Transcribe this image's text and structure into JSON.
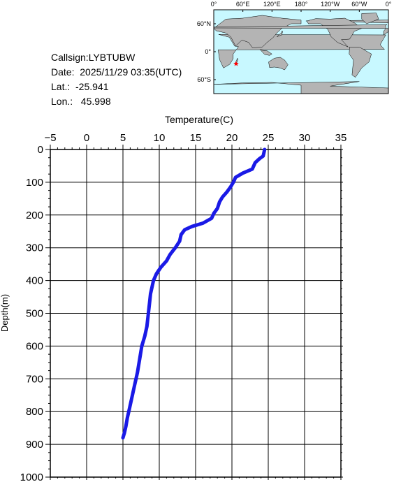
{
  "info": {
    "callsign": "Callsign:LYBTUBW",
    "date": "Date:  2025/11/29 03:35(UTC)",
    "lat": "Lat.:  -25.941",
    "lon": "Lon.:   45.998"
  },
  "map": {
    "top_labels": [
      "0°",
      "60°E",
      "120°E",
      "180°",
      "120°W",
      "60°W",
      "0°"
    ],
    "side_labels": [
      "60°N",
      "0°",
      "60°S"
    ],
    "ocean_color": "#c8f8ff",
    "land_color": "#b4b4b4",
    "marker_color": "#ff0000",
    "marker_lon": 45.998,
    "marker_lat": -25.941
  },
  "chart_data": {
    "type": "line",
    "title": "",
    "xlabel": "Temperature(C)",
    "ylabel": "Depth(m)",
    "xlim": [
      -5,
      35
    ],
    "ylim": [
      0,
      1000
    ],
    "y_inverted": true,
    "x_ticks": [
      -5,
      0,
      5,
      10,
      15,
      20,
      25,
      30,
      35
    ],
    "y_ticks": [
      0,
      100,
      200,
      300,
      400,
      500,
      600,
      700,
      800,
      900,
      1000
    ],
    "grid": true,
    "line_color": "#1a1ae6",
    "series": [
      {
        "points": [
          [
            24.5,
            0
          ],
          [
            24.4,
            10
          ],
          [
            24.3,
            20
          ],
          [
            23.8,
            28
          ],
          [
            23.2,
            40
          ],
          [
            22.8,
            60
          ],
          [
            21.5,
            72
          ],
          [
            20.5,
            85
          ],
          [
            20.2,
            100
          ],
          [
            19.8,
            115
          ],
          [
            19.3,
            130
          ],
          [
            18.7,
            145
          ],
          [
            18.3,
            160
          ],
          [
            18.0,
            180
          ],
          [
            17.5,
            195
          ],
          [
            17.2,
            210
          ],
          [
            16.0,
            225
          ],
          [
            14.5,
            235
          ],
          [
            13.5,
            245
          ],
          [
            13.0,
            260
          ],
          [
            12.8,
            280
          ],
          [
            12.2,
            300
          ],
          [
            11.5,
            320
          ],
          [
            11.0,
            340
          ],
          [
            10.2,
            360
          ],
          [
            9.6,
            380
          ],
          [
            9.2,
            400
          ],
          [
            9.0,
            420
          ],
          [
            8.8,
            440
          ],
          [
            8.7,
            460
          ],
          [
            8.5,
            500
          ],
          [
            8.3,
            540
          ],
          [
            8.0,
            570
          ],
          [
            7.6,
            600
          ],
          [
            7.3,
            640
          ],
          [
            7.0,
            680
          ],
          [
            6.6,
            720
          ],
          [
            6.2,
            760
          ],
          [
            5.9,
            790
          ],
          [
            5.6,
            820
          ],
          [
            5.4,
            845
          ],
          [
            5.2,
            865
          ],
          [
            5.0,
            880
          ]
        ]
      }
    ]
  }
}
